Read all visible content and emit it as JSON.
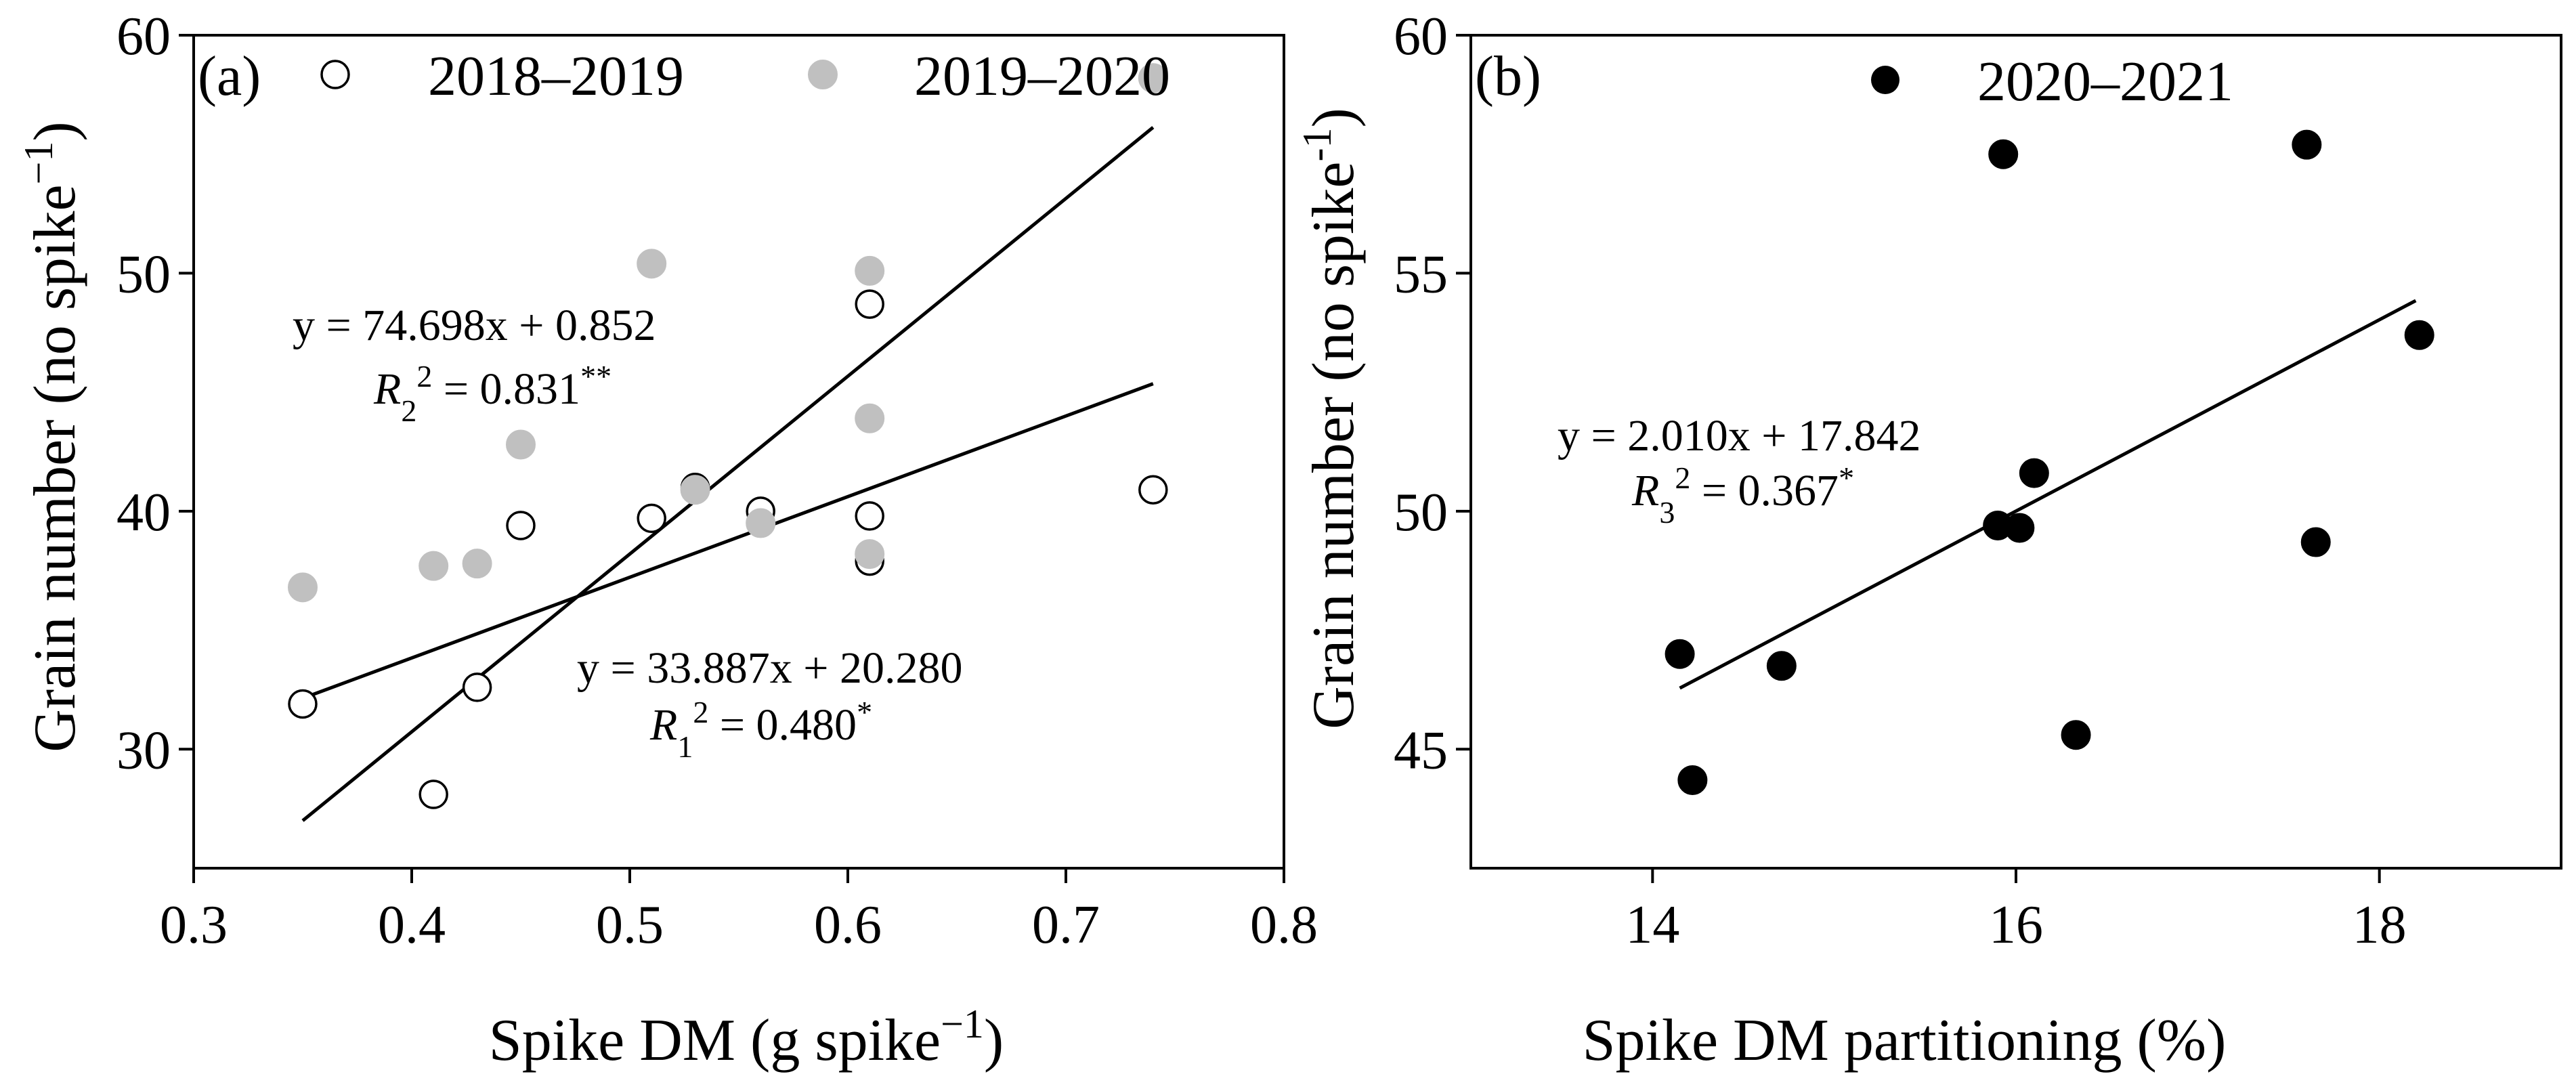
{
  "chart_data": [
    {
      "type": "scatter",
      "panel_label": "(a)",
      "xlabel": "Spike DM (g spike",
      "xlabel_sup": "−1",
      "xlabel_close": ")",
      "ylabel": "Grain number (no spike",
      "ylabel_sup": "−1",
      "ylabel_close": ")",
      "xlim": [
        0.3,
        0.8
      ],
      "ylim": [
        25,
        60
      ],
      "xticks": [
        0.3,
        0.4,
        0.5,
        0.6,
        0.7,
        0.8
      ],
      "xtick_labels": [
        "0.3",
        "0.4",
        "0.5",
        "0.6",
        "0.7",
        "0.8"
      ],
      "yticks": [
        30,
        40,
        50,
        60
      ],
      "ytick_labels": [
        "30",
        "40",
        "50",
        "60"
      ],
      "legend_position": "top",
      "series": [
        {
          "name": "2018–2019",
          "marker": "open-circle",
          "color": "#000000",
          "points": [
            [
              0.35,
              31.9
            ],
            [
              0.41,
              28.1
            ],
            [
              0.43,
              32.6
            ],
            [
              0.45,
              39.4
            ],
            [
              0.51,
              39.7
            ],
            [
              0.53,
              41.0
            ],
            [
              0.56,
              40.0
            ],
            [
              0.61,
              48.7
            ],
            [
              0.61,
              39.8
            ],
            [
              0.61,
              37.9
            ],
            [
              0.74,
              40.9
            ]
          ],
          "fit": {
            "slope": 33.887,
            "intercept": 20.28,
            "x_range": [
              0.35,
              0.74
            ]
          },
          "equation": "y = 33.887x + 20.280",
          "r2_prefix": "R",
          "r2_sub": "1",
          "r2_value": " = 0.480",
          "r2_sig": "*"
        },
        {
          "name": "2019–2020",
          "marker": "filled-circle",
          "color": "#c0c0c0",
          "points": [
            [
              0.35,
              36.8
            ],
            [
              0.41,
              37.7
            ],
            [
              0.43,
              37.8
            ],
            [
              0.45,
              42.8
            ],
            [
              0.51,
              50.4
            ],
            [
              0.53,
              40.9
            ],
            [
              0.56,
              39.5
            ],
            [
              0.61,
              50.1
            ],
            [
              0.61,
              43.9
            ],
            [
              0.61,
              38.2
            ],
            [
              0.74,
              58.2
            ]
          ],
          "fit": {
            "slope": 74.698,
            "intercept": 0.852,
            "x_range": [
              0.35,
              0.74
            ]
          },
          "equation": "y = 74.698x + 0.852",
          "r2_prefix": "R",
          "r2_sub": "2",
          "r2_value": " = 0.831",
          "r2_sig": "**"
        }
      ]
    },
    {
      "type": "scatter",
      "panel_label": "(b)",
      "xlabel": "Spike DM partitioning (%)",
      "ylabel": "Grain number (no spike",
      "ylabel_sup": "-1",
      "ylabel_close": ")",
      "xlim": [
        13,
        19
      ],
      "ylim": [
        42.5,
        60
      ],
      "xticks": [
        14,
        16,
        18
      ],
      "xtick_labels": [
        "14",
        "16",
        "18"
      ],
      "yticks": [
        45,
        50,
        55,
        60
      ],
      "ytick_labels": [
        "45",
        "50",
        "55",
        "60"
      ],
      "legend_position": "top",
      "series": [
        {
          "name": "2020–2021",
          "marker": "filled-circle",
          "color": "#000000",
          "points": [
            [
              14.15,
              47.0
            ],
            [
              14.22,
              44.35
            ],
            [
              14.71,
              46.75
            ],
            [
              15.9,
              49.7
            ],
            [
              15.93,
              57.5
            ],
            [
              16.02,
              49.65
            ],
            [
              16.1,
              50.8
            ],
            [
              16.33,
              45.3
            ],
            [
              17.6,
              57.7
            ],
            [
              17.65,
              49.35
            ],
            [
              18.22,
              53.7
            ]
          ],
          "fit": {
            "slope": 2.01,
            "intercept": 17.842,
            "x_range": [
              14.15,
              18.2
            ]
          },
          "equation": "y = 2.010x + 17.842",
          "r2_prefix": "R",
          "r2_sub": "3",
          "r2_value": " = 0.367",
          "r2_sig": "*"
        }
      ]
    }
  ]
}
